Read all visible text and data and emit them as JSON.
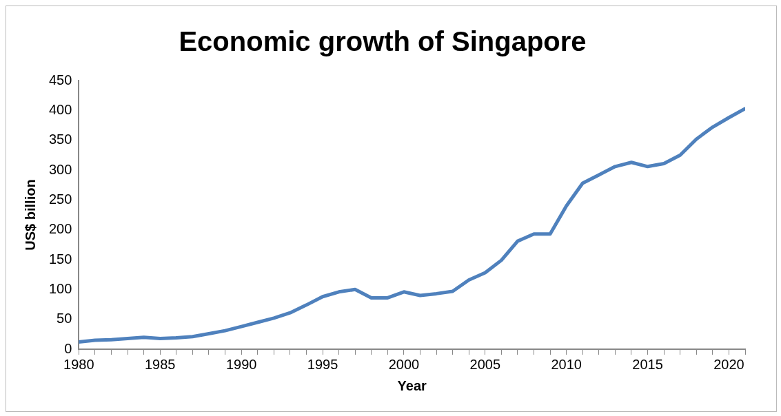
{
  "chart_data": {
    "type": "line",
    "title": "Economic growth of Singapore",
    "xlabel": "Year",
    "ylabel": "US$ billion",
    "x": [
      1980,
      1981,
      1982,
      1983,
      1984,
      1985,
      1986,
      1987,
      1988,
      1989,
      1990,
      1991,
      1992,
      1993,
      1994,
      1995,
      1996,
      1997,
      1998,
      1999,
      2000,
      2001,
      2002,
      2003,
      2004,
      2005,
      2006,
      2007,
      2008,
      2009,
      2010,
      2011,
      2012,
      2013,
      2014,
      2015,
      2016,
      2017,
      2018,
      2019,
      2020,
      2021
    ],
    "series": [
      {
        "color": "#4f81bd",
        "values": [
          12,
          15,
          16,
          18,
          20,
          18,
          19,
          21,
          26,
          31,
          38,
          45,
          52,
          61,
          74,
          88,
          96,
          100,
          86,
          86,
          96,
          90,
          93,
          97,
          116,
          128,
          149,
          181,
          193,
          193,
          240,
          278,
          292,
          306,
          313,
          306,
          311,
          325,
          352,
          372,
          388,
          403
        ]
      }
    ],
    "xlim": [
      1980,
      2021
    ],
    "xticks": [
      1980,
      {
        "value": 1981,
        "label": null
      },
      {
        "value": 1982,
        "label": null
      },
      {
        "value": 1983,
        "label": null
      },
      {
        "value": 1984,
        "label": null
      },
      1985,
      {
        "value": 1986,
        "label": null
      },
      {
        "value": 1987,
        "label": null
      },
      {
        "value": 1988,
        "label": null
      },
      {
        "value": 1989,
        "label": null
      },
      1990,
      {
        "value": 1991,
        "label": null
      },
      {
        "value": 1992,
        "label": null
      },
      {
        "value": 1993,
        "label": null
      },
      {
        "value": 1994,
        "label": null
      },
      1995,
      {
        "value": 1996,
        "label": null
      },
      {
        "value": 1997,
        "label": null
      },
      {
        "value": 1998,
        "label": null
      },
      {
        "value": 1999,
        "label": null
      },
      2000,
      {
        "value": 2001,
        "label": null
      },
      {
        "value": 2002,
        "label": null
      },
      {
        "value": 2003,
        "label": null
      },
      {
        "value": 2004,
        "label": null
      },
      2005,
      {
        "value": 2006,
        "label": null
      },
      {
        "value": 2007,
        "label": null
      },
      {
        "value": 2008,
        "label": null
      },
      {
        "value": 2009,
        "label": null
      },
      2010,
      {
        "value": 2011,
        "label": null
      },
      {
        "value": 2012,
        "label": null
      },
      {
        "value": 2013,
        "label": null
      },
      {
        "value": 2014,
        "label": null
      },
      2015,
      {
        "value": 2016,
        "label": null
      },
      {
        "value": 2017,
        "label": null
      },
      {
        "value": 2018,
        "label": null
      },
      {
        "value": 2019,
        "label": null
      },
      2020,
      {
        "value": 2021,
        "label": null
      }
    ],
    "ylim": [
      0,
      450
    ],
    "yticks": [
      0,
      50,
      100,
      150,
      200,
      250,
      300,
      350,
      400,
      450
    ],
    "grid": false,
    "legend": false,
    "marker": "none",
    "line_style": "solid"
  }
}
